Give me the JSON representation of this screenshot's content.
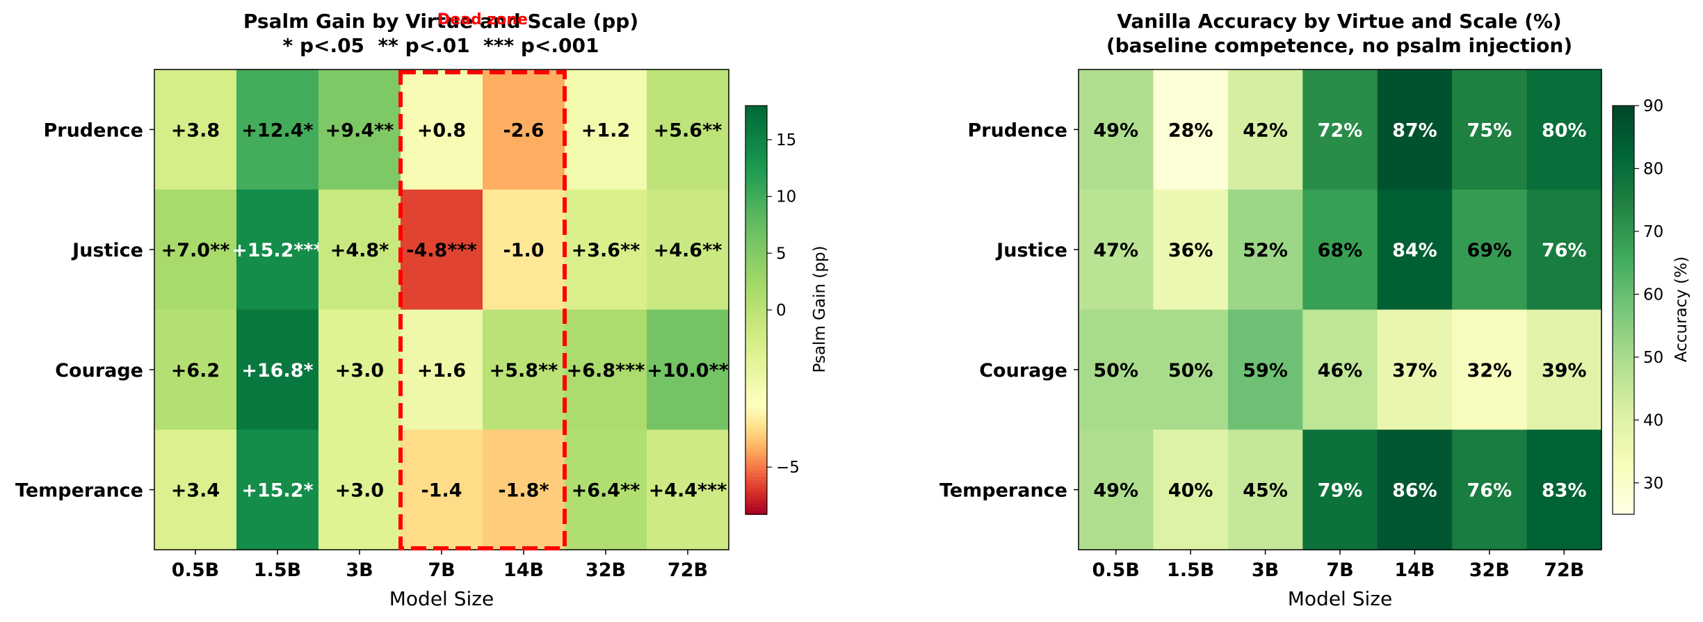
{
  "chart_data": [
    {
      "type": "heatmap",
      "title": "Psalm Gain by Virtue and Scale (pp)",
      "subtitle": "* p<.05  ** p<.01  *** p<.001",
      "annotation": "Dead zone",
      "xlabel": "Model Size",
      "ylabel": "",
      "x": [
        "0.5B",
        "1.5B",
        "3B",
        "7B",
        "14B",
        "32B",
        "72B"
      ],
      "y": [
        "Prudence",
        "Justice",
        "Courage",
        "Temperance"
      ],
      "values": [
        [
          3.8,
          12.4,
          9.4,
          0.8,
          -2.6,
          1.2,
          5.6
        ],
        [
          7.0,
          15.2,
          4.8,
          -4.8,
          -1.0,
          3.6,
          4.6
        ],
        [
          6.2,
          16.8,
          3.0,
          1.6,
          5.8,
          6.8,
          10.0
        ],
        [
          3.4,
          15.2,
          3.0,
          -1.4,
          -1.8,
          6.4,
          4.4
        ]
      ],
      "cell_labels": [
        [
          "+3.8",
          "+12.4*",
          "+9.4**",
          "+0.8",
          "-2.6",
          "+1.2",
          "+5.6**"
        ],
        [
          "+7.0**",
          "+15.2***",
          "+4.8*",
          "-4.8***",
          "-1.0",
          "+3.6**",
          "+4.6**"
        ],
        [
          "+6.2",
          "+16.8*",
          "+3.0",
          "+1.6",
          "+5.8**",
          "+6.8***",
          "+10.0**"
        ],
        [
          "+3.4",
          "+15.2*",
          "+3.0",
          "-1.4",
          "-1.8*",
          "+6.4**",
          "+4.4***"
        ]
      ],
      "highlight_columns": [
        "7B",
        "14B"
      ],
      "colormap": "RdYlGn diverging, centered at 0",
      "color_range": [
        -6.5,
        18
      ],
      "colorbar": {
        "label": "Psalm Gain (pp)",
        "ticks": [
          "−5",
          "0",
          "5",
          "10",
          "15"
        ]
      }
    },
    {
      "type": "heatmap",
      "title": "Vanilla Accuracy by Virtue and Scale (%)",
      "subtitle": "(baseline competence, no psalm injection)",
      "xlabel": "Model Size",
      "ylabel": "",
      "x": [
        "0.5B",
        "1.5B",
        "3B",
        "7B",
        "14B",
        "32B",
        "72B"
      ],
      "y": [
        "Prudence",
        "Justice",
        "Courage",
        "Temperance"
      ],
      "values": [
        [
          49,
          28,
          42,
          72,
          87,
          75,
          80
        ],
        [
          47,
          36,
          52,
          68,
          84,
          69,
          76
        ],
        [
          50,
          50,
          59,
          46,
          37,
          32,
          39
        ],
        [
          49,
          40,
          45,
          79,
          86,
          76,
          83
        ]
      ],
      "cell_labels": [
        [
          "49%",
          "28%",
          "42%",
          "72%",
          "87%",
          "75%",
          "80%"
        ],
        [
          "47%",
          "36%",
          "52%",
          "68%",
          "84%",
          "69%",
          "76%"
        ],
        [
          "50%",
          "50%",
          "59%",
          "46%",
          "37%",
          "32%",
          "39%"
        ],
        [
          "49%",
          "40%",
          "45%",
          "79%",
          "86%",
          "76%",
          "83%"
        ]
      ],
      "colormap": "YlGn sequential",
      "color_range": [
        25,
        90
      ],
      "colorbar": {
        "label": "Accuracy (%)",
        "ticks": [
          "30",
          "40",
          "50",
          "60",
          "70",
          "80",
          "90"
        ]
      }
    }
  ]
}
